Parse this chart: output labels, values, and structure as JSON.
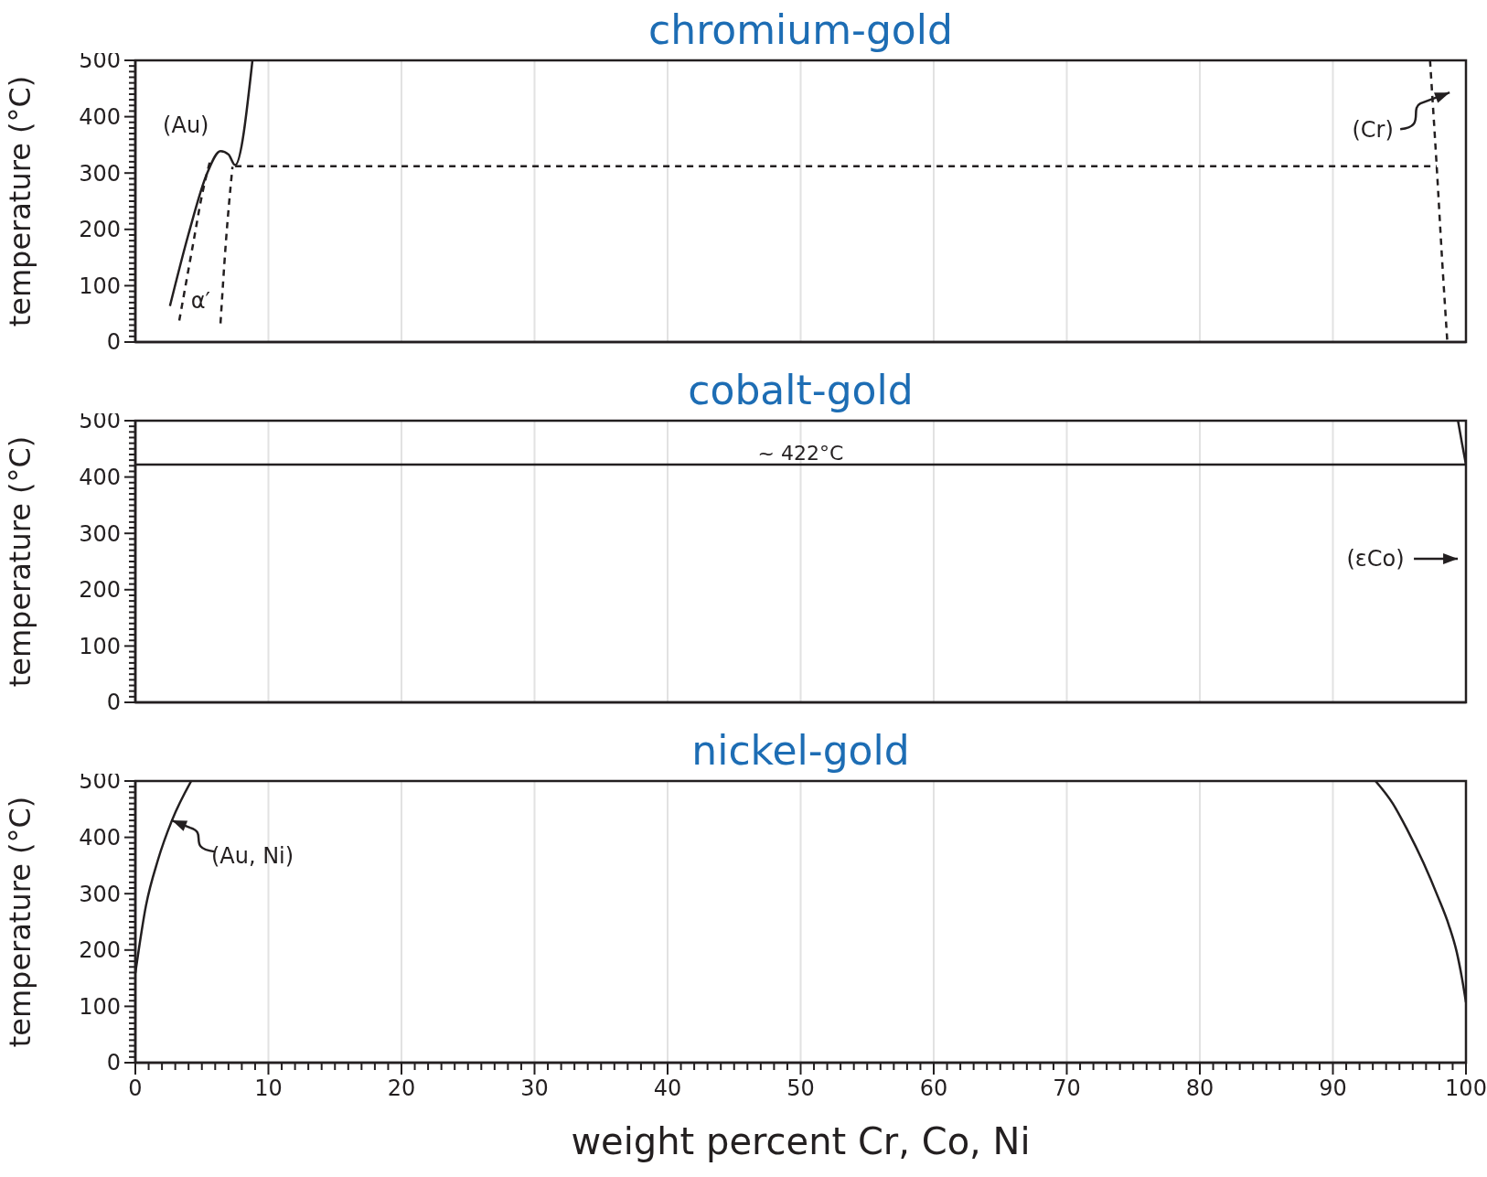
{
  "chart_data": [
    {
      "type": "line",
      "title": "chromium-gold",
      "ylabel": "temperature (°C)",
      "xlim": [
        0,
        100
      ],
      "ylim": [
        0,
        500
      ],
      "grid": "x",
      "tick_labels": "y",
      "xticks": [
        0,
        10,
        20,
        30,
        40,
        50,
        60,
        70,
        80,
        90,
        100
      ],
      "yticks": [
        0,
        {
          "value": 10,
          "label": null
        },
        {
          "value": 20,
          "label": null
        },
        {
          "value": 30,
          "label": null
        },
        {
          "value": 40,
          "label": null
        },
        {
          "value": 50,
          "label": null
        },
        {
          "value": 60,
          "label": null
        },
        {
          "value": 70,
          "label": null
        },
        {
          "value": 80,
          "label": null
        },
        {
          "value": 90,
          "label": null
        },
        100,
        {
          "value": 110,
          "label": null
        },
        {
          "value": 120,
          "label": null
        },
        {
          "value": 130,
          "label": null
        },
        {
          "value": 140,
          "label": null
        },
        {
          "value": 150,
          "label": null
        },
        {
          "value": 160,
          "label": null
        },
        {
          "value": 170,
          "label": null
        },
        {
          "value": 180,
          "label": null
        },
        {
          "value": 190,
          "label": null
        },
        200,
        {
          "value": 210,
          "label": null
        },
        {
          "value": 220,
          "label": null
        },
        {
          "value": 230,
          "label": null
        },
        {
          "value": 240,
          "label": null
        },
        {
          "value": 250,
          "label": null
        },
        {
          "value": 260,
          "label": null
        },
        {
          "value": 270,
          "label": null
        },
        {
          "value": 280,
          "label": null
        },
        {
          "value": 290,
          "label": null
        },
        300,
        {
          "value": 310,
          "label": null
        },
        {
          "value": 320,
          "label": null
        },
        {
          "value": 330,
          "label": null
        },
        {
          "value": 340,
          "label": null
        },
        {
          "value": 350,
          "label": null
        },
        {
          "value": 360,
          "label": null
        },
        {
          "value": 370,
          "label": null
        },
        {
          "value": 380,
          "label": null
        },
        {
          "value": 390,
          "label": null
        },
        400,
        {
          "value": 410,
          "label": null
        },
        {
          "value": 420,
          "label": null
        },
        {
          "value": 430,
          "label": null
        },
        {
          "value": 440,
          "label": null
        },
        {
          "value": 450,
          "label": null
        },
        {
          "value": 460,
          "label": null
        },
        {
          "value": 470,
          "label": null
        },
        {
          "value": 480,
          "label": null
        },
        {
          "value": 490,
          "label": null
        },
        500
      ],
      "series": [
        {
          "color": "#231f20",
          "line_style": "solid",
          "x": [
            2.6,
            4.0,
            5.4,
            6.4,
            7.0,
            7.5,
            8.8
          ],
          "values": [
            64,
            192,
            300,
            339,
            333,
            314,
            500
          ]
        },
        {
          "color": "#231f20",
          "line_style": "dashed",
          "x": [
            3.3,
            4.4,
            5.0,
            5.6
          ],
          "values": [
            38,
            182,
            260,
            320
          ]
        },
        {
          "color": "#231f20",
          "line_style": "dashed",
          "x": [
            6.4,
            6.8,
            7.3
          ],
          "values": [
            33,
            176,
            311
          ]
        },
        {
          "color": "#231f20",
          "line_style": "dashed",
          "x": [
            7.5,
            97.8
          ],
          "values": [
            312,
            312
          ]
        },
        {
          "color": "#231f20",
          "line_style": "dashed",
          "x": [
            97.3,
            97.8,
            98.2,
            98.6
          ],
          "values": [
            500,
            312,
            149,
            0
          ]
        }
      ],
      "annotations": [
        "(Au)",
        "α′",
        "(Cr)"
      ]
    },
    {
      "type": "line",
      "title": "cobalt-gold",
      "ylabel": "temperature (°C)",
      "xlim": [
        0,
        100
      ],
      "ylim": [
        0,
        500
      ],
      "grid": "x",
      "tick_labels": "y",
      "xticks": [
        0,
        10,
        20,
        30,
        40,
        50,
        60,
        70,
        80,
        90,
        100
      ],
      "yticks": [
        0,
        {
          "value": 10,
          "label": null
        },
        {
          "value": 20,
          "label": null
        },
        {
          "value": 30,
          "label": null
        },
        {
          "value": 40,
          "label": null
        },
        {
          "value": 50,
          "label": null
        },
        {
          "value": 60,
          "label": null
        },
        {
          "value": 70,
          "label": null
        },
        {
          "value": 80,
          "label": null
        },
        {
          "value": 90,
          "label": null
        },
        100,
        {
          "value": 110,
          "label": null
        },
        {
          "value": 120,
          "label": null
        },
        {
          "value": 130,
          "label": null
        },
        {
          "value": 140,
          "label": null
        },
        {
          "value": 150,
          "label": null
        },
        {
          "value": 160,
          "label": null
        },
        {
          "value": 170,
          "label": null
        },
        {
          "value": 180,
          "label": null
        },
        {
          "value": 190,
          "label": null
        },
        200,
        {
          "value": 210,
          "label": null
        },
        {
          "value": 220,
          "label": null
        },
        {
          "value": 230,
          "label": null
        },
        {
          "value": 240,
          "label": null
        },
        {
          "value": 250,
          "label": null
        },
        {
          "value": 260,
          "label": null
        },
        {
          "value": 270,
          "label": null
        },
        {
          "value": 280,
          "label": null
        },
        {
          "value": 290,
          "label": null
        },
        300,
        {
          "value": 310,
          "label": null
        },
        {
          "value": 320,
          "label": null
        },
        {
          "value": 330,
          "label": null
        },
        {
          "value": 340,
          "label": null
        },
        {
          "value": 350,
          "label": null
        },
        {
          "value": 360,
          "label": null
        },
        {
          "value": 370,
          "label": null
        },
        {
          "value": 380,
          "label": null
        },
        {
          "value": 390,
          "label": null
        },
        400,
        {
          "value": 410,
          "label": null
        },
        {
          "value": 420,
          "label": null
        },
        {
          "value": 430,
          "label": null
        },
        {
          "value": 440,
          "label": null
        },
        {
          "value": 450,
          "label": null
        },
        {
          "value": 460,
          "label": null
        },
        {
          "value": 470,
          "label": null
        },
        {
          "value": 480,
          "label": null
        },
        {
          "value": 490,
          "label": null
        },
        500
      ],
      "series": [
        {
          "color": "#231f20",
          "line_style": "solid",
          "x": [
            99.4,
            99.7,
            100
          ],
          "values": [
            500,
            460,
            422
          ]
        }
      ],
      "ref_lines": [
        {
          "axis": "y",
          "value": 422,
          "label": "~ 422°C",
          "color": "#231f20"
        }
      ],
      "annotations": [
        "(εCo)"
      ]
    },
    {
      "type": "line",
      "title": "nickel-gold",
      "ylabel": "temperature (°C)",
      "xlabel": "weight percent Cr, Co, Ni",
      "xlim": [
        0,
        100
      ],
      "ylim": [
        0,
        500
      ],
      "grid": "x",
      "xticks": [
        0,
        {
          "value": 1,
          "label": null
        },
        {
          "value": 2,
          "label": null
        },
        {
          "value": 3,
          "label": null
        },
        {
          "value": 4,
          "label": null
        },
        {
          "value": 5,
          "label": null
        },
        {
          "value": 6,
          "label": null
        },
        {
          "value": 7,
          "label": null
        },
        {
          "value": 8,
          "label": null
        },
        {
          "value": 9,
          "label": null
        },
        10,
        {
          "value": 11,
          "label": null
        },
        {
          "value": 12,
          "label": null
        },
        {
          "value": 13,
          "label": null
        },
        {
          "value": 14,
          "label": null
        },
        {
          "value": 15,
          "label": null
        },
        {
          "value": 16,
          "label": null
        },
        {
          "value": 17,
          "label": null
        },
        {
          "value": 18,
          "label": null
        },
        {
          "value": 19,
          "label": null
        },
        20,
        {
          "value": 21,
          "label": null
        },
        {
          "value": 22,
          "label": null
        },
        {
          "value": 23,
          "label": null
        },
        {
          "value": 24,
          "label": null
        },
        {
          "value": 25,
          "label": null
        },
        {
          "value": 26,
          "label": null
        },
        {
          "value": 27,
          "label": null
        },
        {
          "value": 28,
          "label": null
        },
        {
          "value": 29,
          "label": null
        },
        30,
        {
          "value": 31,
          "label": null
        },
        {
          "value": 32,
          "label": null
        },
        {
          "value": 33,
          "label": null
        },
        {
          "value": 34,
          "label": null
        },
        {
          "value": 35,
          "label": null
        },
        {
          "value": 36,
          "label": null
        },
        {
          "value": 37,
          "label": null
        },
        {
          "value": 38,
          "label": null
        },
        {
          "value": 39,
          "label": null
        },
        40,
        {
          "value": 41,
          "label": null
        },
        {
          "value": 42,
          "label": null
        },
        {
          "value": 43,
          "label": null
        },
        {
          "value": 44,
          "label": null
        },
        {
          "value": 45,
          "label": null
        },
        {
          "value": 46,
          "label": null
        },
        {
          "value": 47,
          "label": null
        },
        {
          "value": 48,
          "label": null
        },
        {
          "value": 49,
          "label": null
        },
        50,
        {
          "value": 51,
          "label": null
        },
        {
          "value": 52,
          "label": null
        },
        {
          "value": 53,
          "label": null
        },
        {
          "value": 54,
          "label": null
        },
        {
          "value": 55,
          "label": null
        },
        {
          "value": 56,
          "label": null
        },
        {
          "value": 57,
          "label": null
        },
        {
          "value": 58,
          "label": null
        },
        {
          "value": 59,
          "label": null
        },
        60,
        {
          "value": 61,
          "label": null
        },
        {
          "value": 62,
          "label": null
        },
        {
          "value": 63,
          "label": null
        },
        {
          "value": 64,
          "label": null
        },
        {
          "value": 65,
          "label": null
        },
        {
          "value": 66,
          "label": null
        },
        {
          "value": 67,
          "label": null
        },
        {
          "value": 68,
          "label": null
        },
        {
          "value": 69,
          "label": null
        },
        70,
        {
          "value": 71,
          "label": null
        },
        {
          "value": 72,
          "label": null
        },
        {
          "value": 73,
          "label": null
        },
        {
          "value": 74,
          "label": null
        },
        {
          "value": 75,
          "label": null
        },
        {
          "value": 76,
          "label": null
        },
        {
          "value": 77,
          "label": null
        },
        {
          "value": 78,
          "label": null
        },
        {
          "value": 79,
          "label": null
        },
        80,
        {
          "value": 81,
          "label": null
        },
        {
          "value": 82,
          "label": null
        },
        {
          "value": 83,
          "label": null
        },
        {
          "value": 84,
          "label": null
        },
        {
          "value": 85,
          "label": null
        },
        {
          "value": 86,
          "label": null
        },
        {
          "value": 87,
          "label": null
        },
        {
          "value": 88,
          "label": null
        },
        {
          "value": 89,
          "label": null
        },
        90,
        {
          "value": 91,
          "label": null
        },
        {
          "value": 92,
          "label": null
        },
        {
          "value": 93,
          "label": null
        },
        {
          "value": 94,
          "label": null
        },
        {
          "value": 95,
          "label": null
        },
        {
          "value": 96,
          "label": null
        },
        {
          "value": 97,
          "label": null
        },
        {
          "value": 98,
          "label": null
        },
        {
          "value": 99,
          "label": null
        },
        100
      ],
      "yticks": [
        0,
        {
          "value": 10,
          "label": null
        },
        {
          "value": 20,
          "label": null
        },
        {
          "value": 30,
          "label": null
        },
        {
          "value": 40,
          "label": null
        },
        {
          "value": 50,
          "label": null
        },
        {
          "value": 60,
          "label": null
        },
        {
          "value": 70,
          "label": null
        },
        {
          "value": 80,
          "label": null
        },
        {
          "value": 90,
          "label": null
        },
        100,
        {
          "value": 110,
          "label": null
        },
        {
          "value": 120,
          "label": null
        },
        {
          "value": 130,
          "label": null
        },
        {
          "value": 140,
          "label": null
        },
        {
          "value": 150,
          "label": null
        },
        {
          "value": 160,
          "label": null
        },
        {
          "value": 170,
          "label": null
        },
        {
          "value": 180,
          "label": null
        },
        {
          "value": 190,
          "label": null
        },
        200,
        {
          "value": 210,
          "label": null
        },
        {
          "value": 220,
          "label": null
        },
        {
          "value": 230,
          "label": null
        },
        {
          "value": 240,
          "label": null
        },
        {
          "value": 250,
          "label": null
        },
        {
          "value": 260,
          "label": null
        },
        {
          "value": 270,
          "label": null
        },
        {
          "value": 280,
          "label": null
        },
        {
          "value": 290,
          "label": null
        },
        300,
        {
          "value": 310,
          "label": null
        },
        {
          "value": 320,
          "label": null
        },
        {
          "value": 330,
          "label": null
        },
        {
          "value": 340,
          "label": null
        },
        {
          "value": 350,
          "label": null
        },
        {
          "value": 360,
          "label": null
        },
        {
          "value": 370,
          "label": null
        },
        {
          "value": 380,
          "label": null
        },
        {
          "value": 390,
          "label": null
        },
        400,
        {
          "value": 410,
          "label": null
        },
        {
          "value": 420,
          "label": null
        },
        {
          "value": 430,
          "label": null
        },
        {
          "value": 440,
          "label": null
        },
        {
          "value": 450,
          "label": null
        },
        {
          "value": 460,
          "label": null
        },
        {
          "value": 470,
          "label": null
        },
        {
          "value": 480,
          "label": null
        },
        {
          "value": 490,
          "label": null
        },
        500
      ],
      "series": [
        {
          "color": "#231f20",
          "line_style": "solid",
          "x": [
            0,
            0.8,
            1.7,
            2.75,
            4.2
          ],
          "values": [
            159,
            279,
            360,
            430,
            500
          ]
        },
        {
          "color": "#231f20",
          "line_style": "solid",
          "x": [
            93.2,
            94.5,
            95.6,
            96.8,
            97.9,
            98.7,
            99.3,
            99.7,
            100
          ],
          "values": [
            500,
            460,
            413,
            355,
            294,
            245,
            197,
            150,
            107
          ]
        }
      ],
      "annotations": [
        {
          "text": "(Au, Ni)",
          "x": 2.75,
          "y": 430
        }
      ]
    }
  ]
}
